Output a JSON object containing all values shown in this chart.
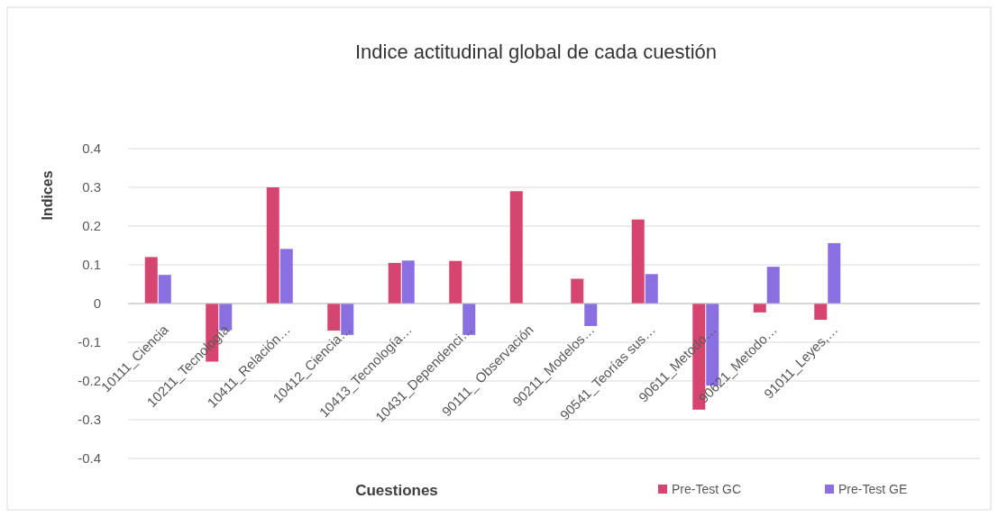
{
  "chart_data": {
    "type": "bar",
    "title": "Indice actitudinal global de cada cuestión",
    "xlabel": "Cuestiones",
    "ylabel": "Indices",
    "categories": [
      "10111_Ciencia",
      "10211_Tecnología",
      "10411_Relación…",
      "10412_Ciencia…",
      "10413_Tecnología…",
      "10431_Dependenci…",
      "90111_ Observación",
      "90211_Modelos…",
      "90541_Teorías sus…",
      "90611_Metodo…",
      "90621_Metodo…",
      "91011_Leyes,…",
      null,
      null
    ],
    "series": [
      {
        "name": "Pre-Test GC",
        "color": "#d6456f",
        "values": [
          0.12,
          -0.15,
          0.3,
          -0.07,
          0.105,
          0.11,
          0.29,
          0.064,
          0.217,
          -0.274,
          -0.023,
          -0.042,
          null,
          null
        ]
      },
      {
        "name": "Pre-Test GE",
        "color": "#8a6fe0",
        "values": [
          0.074,
          -0.069,
          0.141,
          -0.081,
          0.111,
          -0.081,
          null,
          -0.058,
          0.076,
          -0.212,
          0.095,
          0.156,
          null,
          null
        ]
      }
    ],
    "ylim": [
      -0.4,
      0.4
    ],
    "yticks": [
      -0.4,
      -0.3,
      -0.2,
      -0.1,
      0,
      0.1,
      0.2,
      0.3,
      0.4
    ],
    "grid": "y",
    "legend": "bottom right"
  }
}
